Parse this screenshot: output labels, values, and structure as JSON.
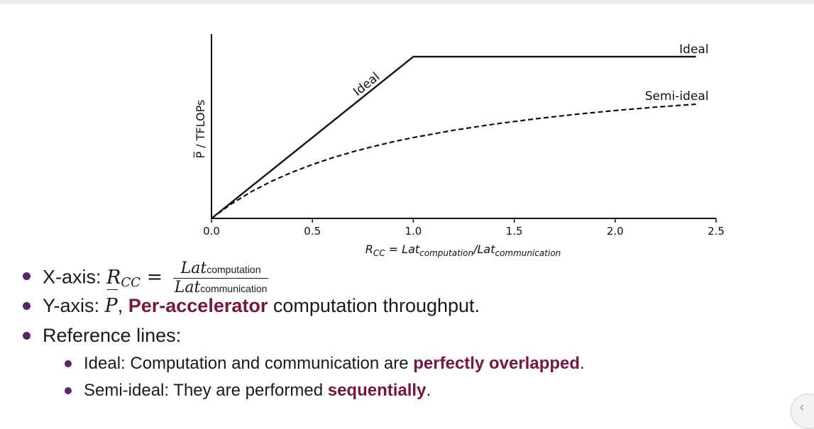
{
  "chart_data": {
    "type": "line",
    "xlabel": {
      "base": "R",
      "sub": "CC",
      "eq": " = ",
      "lat1": "Lat",
      "sub1": "computation",
      "slash": "/",
      "lat2": "Lat",
      "sub2": "communication"
    },
    "ylabel": "P̅ / TFLOPs",
    "xlim": [
      0,
      2.5
    ],
    "ylim": [
      0,
      1.14
    ],
    "xticks": [
      "0.0",
      "0.5",
      "1.0",
      "1.5",
      "2.0",
      "2.5"
    ],
    "grid": false,
    "series": [
      {
        "name": "Ideal",
        "style": "solid",
        "points": [
          [
            0,
            0
          ],
          [
            1.0,
            1.0
          ],
          [
            2.4,
            1.0
          ]
        ]
      },
      {
        "name": "Semi-ideal",
        "style": "dashed",
        "points": [
          [
            0,
            0
          ],
          [
            0.1,
            0.091
          ],
          [
            0.2,
            0.167
          ],
          [
            0.3,
            0.231
          ],
          [
            0.4,
            0.286
          ],
          [
            0.5,
            0.333
          ],
          [
            0.6,
            0.375
          ],
          [
            0.7,
            0.412
          ],
          [
            0.8,
            0.444
          ],
          [
            0.9,
            0.474
          ],
          [
            1.0,
            0.5
          ],
          [
            1.2,
            0.545
          ],
          [
            1.4,
            0.583
          ],
          [
            1.6,
            0.615
          ],
          [
            1.8,
            0.643
          ],
          [
            2.0,
            0.667
          ],
          [
            2.2,
            0.688
          ],
          [
            2.4,
            0.706
          ]
        ]
      }
    ],
    "annotations": {
      "ideal_diag": "Ideal",
      "ideal_end": "Ideal",
      "semi_end": "Semi-ideal"
    }
  },
  "bullets": {
    "b1": {
      "prefix": "X-axis: ",
      "lhs": "R",
      "lhs_sub": "CC",
      "eq": " = ",
      "num": "Lat",
      "num_sub": "computation",
      "den": "Lat",
      "den_sub": "communication"
    },
    "b2": {
      "prefix": "Y-axis: ",
      "sym": "P",
      "comma": ", ",
      "hl": "Per-accelerator",
      "rest": " computation throughput."
    },
    "b3": {
      "text": "Reference lines:"
    },
    "b4": {
      "pre": "Ideal: Computation and communication are ",
      "hl": "perfectly overlapped",
      "post": "."
    },
    "b5": {
      "pre": "Semi-ideal: They are performed ",
      "hl": "sequentially",
      "post": "."
    }
  },
  "colors": {
    "highlight": "#7a1440",
    "bullet": "#5a2669"
  }
}
